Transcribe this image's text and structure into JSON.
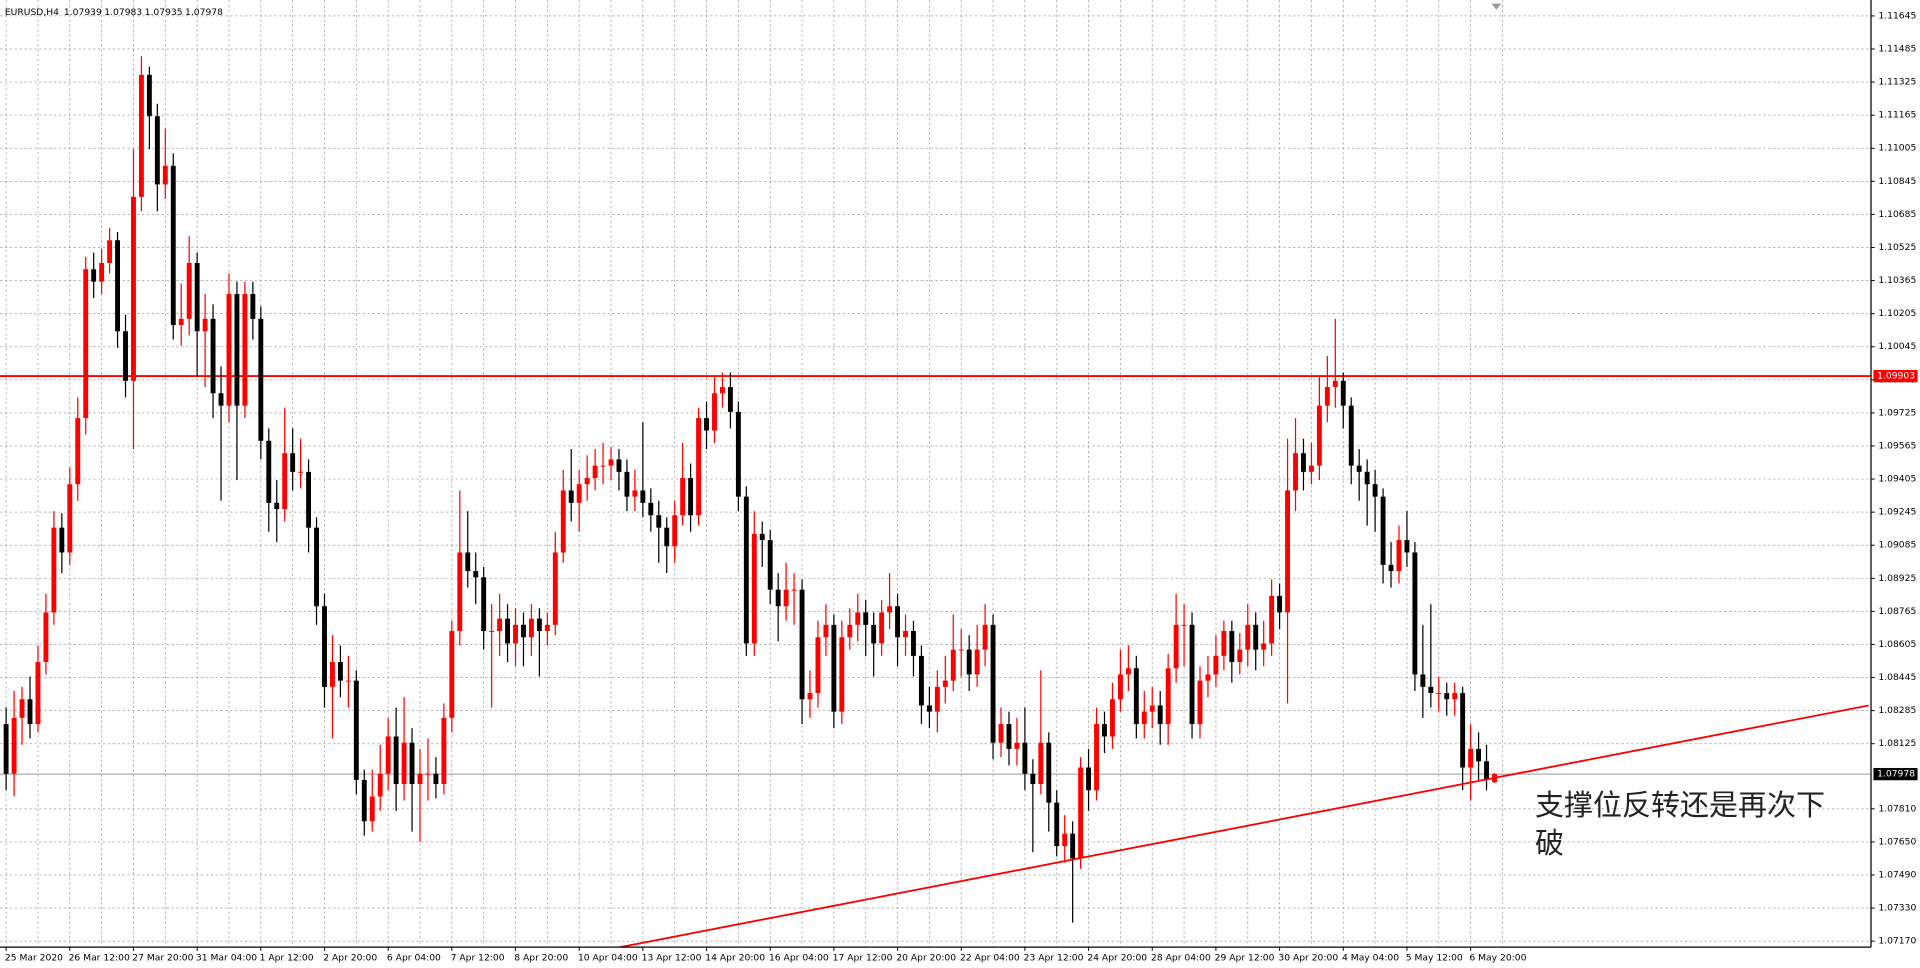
{
  "chart_data": {
    "type": "candlestick",
    "title": "EURUSD,H4",
    "up_color": "#ff0000",
    "down_color": "#000000",
    "grid": true,
    "ylim": [
      1.07141,
      1.11722
    ],
    "yticks": [
      1.11645,
      1.11485,
      1.11325,
      1.11165,
      1.11005,
      1.10845,
      1.10685,
      1.10525,
      1.10365,
      1.10205,
      1.10045,
      1.09885,
      1.09725,
      1.09565,
      1.09405,
      1.09245,
      1.09085,
      1.08925,
      1.08765,
      1.08605,
      1.08445,
      1.08285,
      1.08125,
      {
        "value": 1.0781,
        "label": "1.07810"
      },
      {
        "value": 1.0765,
        "label": "1.07650"
      },
      {
        "value": 1.0749,
        "label": "1.07490"
      },
      {
        "value": 1.0733,
        "label": "1.07330"
      },
      {
        "value": 1.0717,
        "label": "1.07170"
      }
    ],
    "categories": [
      "25 Mar 2020",
      null,
      null,
      null,
      null,
      null,
      null,
      null,
      "26 Mar 12:00",
      null,
      null,
      null,
      null,
      null,
      null,
      null,
      "27 Mar 20:00",
      null,
      null,
      null,
      null,
      null,
      null,
      null,
      "31 Mar 04:00",
      null,
      null,
      null,
      null,
      null,
      null,
      null,
      "1 Apr 12:00",
      null,
      null,
      null,
      null,
      null,
      null,
      null,
      "2 Apr 20:00",
      null,
      null,
      null,
      null,
      null,
      null,
      null,
      "6 Apr 04:00",
      null,
      null,
      null,
      null,
      null,
      null,
      null,
      "7 Apr 12:00",
      null,
      null,
      null,
      null,
      null,
      null,
      null,
      "8 Apr 20:00",
      null,
      null,
      null,
      null,
      null,
      null,
      null,
      "10 Apr 04:00",
      null,
      null,
      null,
      null,
      null,
      null,
      null,
      "13 Apr 12:00",
      null,
      null,
      null,
      null,
      null,
      null,
      null,
      "14 Apr 20:00",
      null,
      null,
      null,
      null,
      null,
      null,
      null,
      "16 Apr 04:00",
      null,
      null,
      null,
      null,
      null,
      null,
      null,
      "17 Apr 12:00",
      null,
      null,
      null,
      null,
      null,
      null,
      null,
      "20 Apr 20:00",
      null,
      null,
      null,
      null,
      null,
      null,
      null,
      "22 Apr 04:00",
      null,
      null,
      null,
      null,
      null,
      null,
      null,
      "23 Apr 12:00",
      null,
      null,
      null,
      null,
      null,
      null,
      null,
      "24 Apr 20:00",
      null,
      null,
      null,
      null,
      null,
      null,
      null,
      "28 Apr 04:00",
      null,
      null,
      null,
      null,
      null,
      null,
      null,
      "29 Apr 12:00",
      null,
      null,
      null,
      null,
      null,
      null,
      null,
      "30 Apr 20:00",
      null,
      null,
      null,
      null,
      null,
      null,
      null,
      "4 May 04:00",
      null,
      null,
      null,
      null,
      null,
      null,
      null,
      "5 May 12:00",
      null,
      null,
      null,
      null,
      null,
      null,
      null,
      "6 May 20:00",
      null,
      null,
      null
    ],
    "ohlc": [
      [
        1.0822,
        1.083,
        1.079,
        1.0798
      ],
      [
        1.0798,
        1.0838,
        1.0787,
        1.0825
      ],
      [
        1.0825,
        1.084,
        1.0812,
        1.0834
      ],
      [
        1.0834,
        1.0845,
        1.0815,
        1.0822
      ],
      [
        1.0822,
        1.086,
        1.0818,
        1.0852
      ],
      [
        1.0852,
        1.0885,
        1.0846,
        1.0876
      ],
      [
        1.0876,
        1.0925,
        1.087,
        1.0917
      ],
      [
        1.0917,
        1.0924,
        1.0895,
        1.0905
      ],
      [
        1.0905,
        1.0946,
        1.0899,
        1.0938
      ],
      [
        1.0938,
        1.098,
        1.093,
        1.097
      ],
      [
        1.097,
        1.1048,
        1.0962,
        1.1042
      ],
      [
        1.1042,
        1.105,
        1.1028,
        1.1036
      ],
      [
        1.1036,
        1.1052,
        1.103,
        1.1045
      ],
      [
        1.1045,
        1.1062,
        1.104,
        1.1056
      ],
      [
        1.1056,
        1.106,
        1.1004,
        1.1012
      ],
      [
        1.1012,
        1.102,
        1.098,
        1.0988
      ],
      [
        1.0988,
        1.11,
        1.0955,
        1.1077
      ],
      [
        1.1077,
        1.1145,
        1.107,
        1.1136
      ],
      [
        1.1136,
        1.114,
        1.11,
        1.1116
      ],
      [
        1.1116,
        1.1122,
        1.107,
        1.1083
      ],
      [
        1.1083,
        1.111,
        1.1076,
        1.1092
      ],
      [
        1.1092,
        1.1098,
        1.1008,
        1.1015
      ],
      [
        1.1015,
        1.1035,
        1.1005,
        1.1018
      ],
      [
        1.1018,
        1.1058,
        1.101,
        1.1045
      ],
      [
        1.1045,
        1.105,
        1.099,
        1.1012
      ],
      [
        1.1012,
        1.103,
        1.0985,
        1.1018
      ],
      [
        1.1018,
        1.1025,
        1.097,
        1.0982
      ],
      [
        1.0982,
        1.0995,
        1.093,
        1.0976
      ],
      [
        1.0976,
        1.104,
        1.0968,
        1.103
      ],
      [
        1.103,
        1.1036,
        1.094,
        1.0976
      ],
      [
        1.0976,
        1.1036,
        1.097,
        1.103
      ],
      [
        1.103,
        1.1036,
        1.1008,
        1.1018
      ],
      [
        1.1018,
        1.1024,
        1.095,
        1.0959
      ],
      [
        1.0959,
        1.0965,
        1.0915,
        1.0929
      ],
      [
        1.0929,
        1.094,
        1.091,
        1.0926
      ],
      [
        1.0926,
        1.0975,
        1.092,
        1.0953
      ],
      [
        1.0953,
        1.0965,
        1.0935,
        1.0944
      ],
      [
        1.0944,
        1.096,
        1.0936,
        1.0944
      ],
      [
        1.0944,
        1.095,
        1.0905,
        1.0917
      ],
      [
        1.0917,
        1.0922,
        1.087,
        1.0879
      ],
      [
        1.0879,
        1.0885,
        1.083,
        1.084
      ],
      [
        1.084,
        1.0865,
        1.0815,
        1.0852
      ],
      [
        1.0852,
        1.086,
        1.0835,
        1.0843
      ],
      [
        1.0843,
        1.0855,
        1.083,
        1.0843
      ],
      [
        1.0843,
        1.0848,
        1.0788,
        1.0795
      ],
      [
        1.0795,
        1.08,
        1.0768,
        1.0775
      ],
      [
        1.0775,
        1.08,
        1.077,
        1.0787
      ],
      [
        1.0787,
        1.0812,
        1.078,
        1.0798
      ],
      [
        1.0798,
        1.0825,
        1.079,
        1.0816
      ],
      [
        1.0816,
        1.083,
        1.078,
        1.0793
      ],
      [
        1.0793,
        1.0835,
        1.0785,
        1.0813
      ],
      [
        1.0813,
        1.082,
        1.077,
        1.0793
      ],
      [
        1.0793,
        1.081,
        1.0765,
        1.0798
      ],
      [
        1.0798,
        1.0815,
        1.0785,
        1.0798
      ],
      [
        1.0798,
        1.0806,
        1.0786,
        1.0793
      ],
      [
        1.0793,
        1.0832,
        1.0788,
        1.0825
      ],
      [
        1.0825,
        1.0872,
        1.0818,
        1.0867
      ],
      [
        1.0867,
        1.0935,
        1.086,
        1.0905
      ],
      [
        1.0905,
        1.0925,
        1.0888,
        1.0896
      ],
      [
        1.0896,
        1.0905,
        1.088,
        1.0893
      ],
      [
        1.0893,
        1.0898,
        1.0858,
        1.0867
      ],
      [
        1.0867,
        1.088,
        1.083,
        1.0867
      ],
      [
        1.0867,
        1.0885,
        1.0855,
        1.0873
      ],
      [
        1.0873,
        1.088,
        1.0852,
        1.0861
      ],
      [
        1.0861,
        1.0878,
        1.085,
        1.087
      ],
      [
        1.087,
        1.0876,
        1.085,
        1.0864
      ],
      [
        1.0864,
        1.088,
        1.0855,
        1.0873
      ],
      [
        1.0873,
        1.0878,
        1.0845,
        1.0867
      ],
      [
        1.0867,
        1.0876,
        1.086,
        1.087
      ],
      [
        1.087,
        1.0915,
        1.0865,
        1.0905
      ],
      [
        1.0905,
        1.0945,
        1.09,
        1.0935
      ],
      [
        1.0935,
        1.0955,
        1.092,
        1.0929
      ],
      [
        1.0929,
        1.0945,
        1.0915,
        1.0938
      ],
      [
        1.0938,
        1.0952,
        1.093,
        1.0941
      ],
      [
        1.0941,
        1.0955,
        1.0935,
        1.0947
      ],
      [
        1.0947,
        1.0958,
        1.0938,
        1.0947
      ],
      [
        1.0947,
        1.0956,
        1.094,
        1.095
      ],
      [
        1.095,
        1.0955,
        1.0935,
        1.0944
      ],
      [
        1.0944,
        1.095,
        1.0925,
        1.0932
      ],
      [
        1.0932,
        1.0945,
        1.0925,
        1.0935
      ],
      [
        1.0935,
        1.0968,
        1.0922,
        1.0929
      ],
      [
        1.0929,
        1.0936,
        1.0915,
        1.0923
      ],
      [
        1.0923,
        1.093,
        1.09,
        1.0917
      ],
      [
        1.0917,
        1.0922,
        1.0895,
        1.0908
      ],
      [
        1.0908,
        1.093,
        1.09,
        1.0923
      ],
      [
        1.0923,
        1.0958,
        1.0918,
        1.0941
      ],
      [
        1.0941,
        1.0948,
        1.0915,
        1.0923
      ],
      [
        1.0923,
        1.0975,
        1.0918,
        1.097
      ],
      [
        1.097,
        1.0978,
        1.0955,
        1.0964
      ],
      [
        1.0964,
        1.099,
        1.0958,
        1.0982
      ],
      [
        1.0982,
        1.0992,
        1.0975,
        1.0985
      ],
      [
        1.0985,
        1.0992,
        1.0965,
        1.0973
      ],
      [
        1.0973,
        1.0978,
        1.0925,
        1.0932
      ],
      [
        1.0932,
        1.0937,
        1.0855,
        1.0861
      ],
      [
        1.0861,
        1.0925,
        1.0855,
        1.0914
      ],
      [
        1.0914,
        1.092,
        1.0898,
        1.0911
      ],
      [
        1.0911,
        1.0916,
        1.088,
        1.0887
      ],
      [
        1.0887,
        1.0895,
        1.0862,
        1.0879
      ],
      [
        1.0879,
        1.09,
        1.0872,
        1.0887
      ],
      [
        1.0887,
        1.0895,
        1.087,
        1.0887
      ],
      [
        1.0887,
        1.0892,
        1.0822,
        1.0834
      ],
      [
        1.0834,
        1.0848,
        1.0825,
        1.0837
      ],
      [
        1.0837,
        1.0872,
        1.083,
        1.0864
      ],
      [
        1.0864,
        1.088,
        1.0855,
        1.087
      ],
      [
        1.087,
        1.0875,
        1.082,
        1.0828
      ],
      [
        1.0828,
        1.0872,
        1.0822,
        1.0864
      ],
      [
        1.0864,
        1.0878,
        1.0858,
        1.087
      ],
      [
        1.087,
        1.0885,
        1.0862,
        1.0876
      ],
      [
        1.0876,
        1.0882,
        1.0855,
        1.087
      ],
      [
        1.087,
        1.0876,
        1.0845,
        1.0861
      ],
      [
        1.0861,
        1.0882,
        1.0855,
        1.0876
      ],
      [
        1.0876,
        1.0895,
        1.0868,
        1.0879
      ],
      [
        1.0879,
        1.0885,
        1.085,
        1.0864
      ],
      [
        1.0864,
        1.0875,
        1.0855,
        1.0867
      ],
      [
        1.0867,
        1.0872,
        1.0845,
        1.0855
      ],
      [
        1.0855,
        1.086,
        1.0822,
        1.0831
      ],
      [
        1.0831,
        1.084,
        1.082,
        1.0828
      ],
      [
        1.0828,
        1.0848,
        1.0818,
        1.084
      ],
      [
        1.084,
        1.0855,
        1.0832,
        1.0843
      ],
      [
        1.0843,
        1.0875,
        1.0838,
        1.0858
      ],
      [
        1.0858,
        1.0868,
        1.0845,
        1.0858
      ],
      [
        1.0858,
        1.0865,
        1.0838,
        1.0846
      ],
      [
        1.0846,
        1.087,
        1.084,
        1.0858
      ],
      [
        1.0858,
        1.088,
        1.085,
        1.087
      ],
      [
        1.087,
        1.0875,
        1.0805,
        1.0813
      ],
      [
        1.0813,
        1.083,
        1.0806,
        1.0822
      ],
      [
        1.0822,
        1.0828,
        1.0802,
        1.081
      ],
      [
        1.081,
        1.0825,
        1.0802,
        1.0813
      ],
      [
        1.0813,
        1.083,
        1.079,
        1.0798
      ],
      [
        1.0798,
        1.0805,
        1.076,
        1.0793
      ],
      [
        1.0793,
        1.0848,
        1.0788,
        1.0813
      ],
      [
        1.0813,
        1.0818,
        1.077,
        1.0784
      ],
      [
        1.0784,
        1.079,
        1.0758,
        1.0763
      ],
      [
        1.0763,
        1.0778,
        1.0755,
        1.0769
      ],
      [
        1.0769,
        1.0775,
        1.0726,
        1.0757
      ],
      [
        1.0757,
        1.0806,
        1.0752,
        1.0801
      ],
      [
        1.0801,
        1.081,
        1.078,
        1.079
      ],
      [
        1.079,
        1.083,
        1.0785,
        1.0822
      ],
      [
        1.0822,
        1.0828,
        1.0808,
        1.0816
      ],
      [
        1.0816,
        1.0842,
        1.081,
        1.0834
      ],
      [
        1.0834,
        1.0858,
        1.0828,
        1.0846
      ],
      [
        1.0846,
        1.086,
        1.0838,
        1.0849
      ],
      [
        1.0849,
        1.0855,
        1.0815,
        1.0822
      ],
      [
        1.0822,
        1.0838,
        1.0815,
        1.0828
      ],
      [
        1.0828,
        1.084,
        1.082,
        1.0831
      ],
      [
        1.0831,
        1.0838,
        1.0812,
        1.0822
      ],
      [
        1.0822,
        1.0856,
        1.0812,
        1.0849
      ],
      [
        1.0849,
        1.0885,
        1.0842,
        1.087
      ],
      [
        1.087,
        1.088,
        1.085,
        1.087
      ],
      [
        1.087,
        1.0876,
        1.0815,
        1.0822
      ],
      [
        1.0822,
        1.085,
        1.0815,
        1.0843
      ],
      [
        1.0843,
        1.0855,
        1.0835,
        1.0846
      ],
      [
        1.0846,
        1.0865,
        1.084,
        1.0855
      ],
      [
        1.0855,
        1.0872,
        1.0848,
        1.0867
      ],
      [
        1.0867,
        1.0872,
        1.0842,
        1.0852
      ],
      [
        1.0852,
        1.0866,
        1.0846,
        1.0858
      ],
      [
        1.0858,
        1.088,
        1.085,
        1.087
      ],
      [
        1.087,
        1.0876,
        1.0848,
        1.0858
      ],
      [
        1.0858,
        1.0872,
        1.085,
        1.0861
      ],
      [
        1.0861,
        1.0892,
        1.0855,
        1.0884
      ],
      [
        1.0884,
        1.089,
        1.0868,
        1.0876
      ],
      [
        1.0876,
        1.096,
        1.0832,
        1.0935
      ],
      [
        1.0935,
        1.097,
        1.0925,
        1.0953
      ],
      [
        1.0953,
        1.096,
        1.0935,
        1.0944
      ],
      [
        1.0944,
        1.0958,
        1.0938,
        1.0947
      ],
      [
        1.0947,
        1.099,
        1.094,
        1.0976
      ],
      [
        1.0976,
        1.1,
        1.0968,
        1.0985
      ],
      [
        1.0985,
        1.1018,
        1.0975,
        1.0988
      ],
      [
        1.0988,
        1.0992,
        1.0965,
        1.0976
      ],
      [
        1.0976,
        1.098,
        1.0938,
        1.0947
      ],
      [
        1.0947,
        1.0955,
        1.093,
        1.0944
      ],
      [
        1.0944,
        1.095,
        1.0918,
        1.0938
      ],
      [
        1.0938,
        1.0945,
        1.0915,
        1.0932
      ],
      [
        1.0932,
        1.0936,
        1.089,
        1.0899
      ],
      [
        1.0899,
        1.091,
        1.0888,
        1.0896
      ],
      [
        1.0896,
        1.0918,
        1.089,
        1.0911
      ],
      [
        1.0911,
        1.0925,
        1.0898,
        1.0905
      ],
      [
        1.0905,
        1.091,
        1.0838,
        1.0846
      ],
      [
        1.0846,
        1.087,
        1.0825,
        1.084
      ],
      [
        1.084,
        1.088,
        1.083,
        1.0837
      ],
      [
        1.0837,
        1.0845,
        1.0828,
        1.0837
      ],
      [
        1.0837,
        1.0842,
        1.0826,
        1.0834
      ],
      [
        1.0834,
        1.0842,
        1.0826,
        1.0837
      ],
      [
        1.0837,
        1.084,
        1.079,
        1.0801
      ],
      [
        1.0801,
        1.0822,
        1.0785,
        1.081
      ],
      [
        1.081,
        1.0818,
        1.0795,
        1.0804
      ],
      [
        1.0804,
        1.0812,
        1.079,
        1.0795
      ],
      [
        1.07939,
        1.07983,
        1.07935,
        1.07978
      ]
    ],
    "levels": [
      {
        "value": 1.09903,
        "color": "#ff0000"
      }
    ],
    "trend_line": {
      "x": [
        77,
        234
      ],
      "values": [
        1.0714,
        1.0831
      ],
      "color": "#ff0000"
    },
    "annotation": "支撑位反转还是再次下破"
  }
}
